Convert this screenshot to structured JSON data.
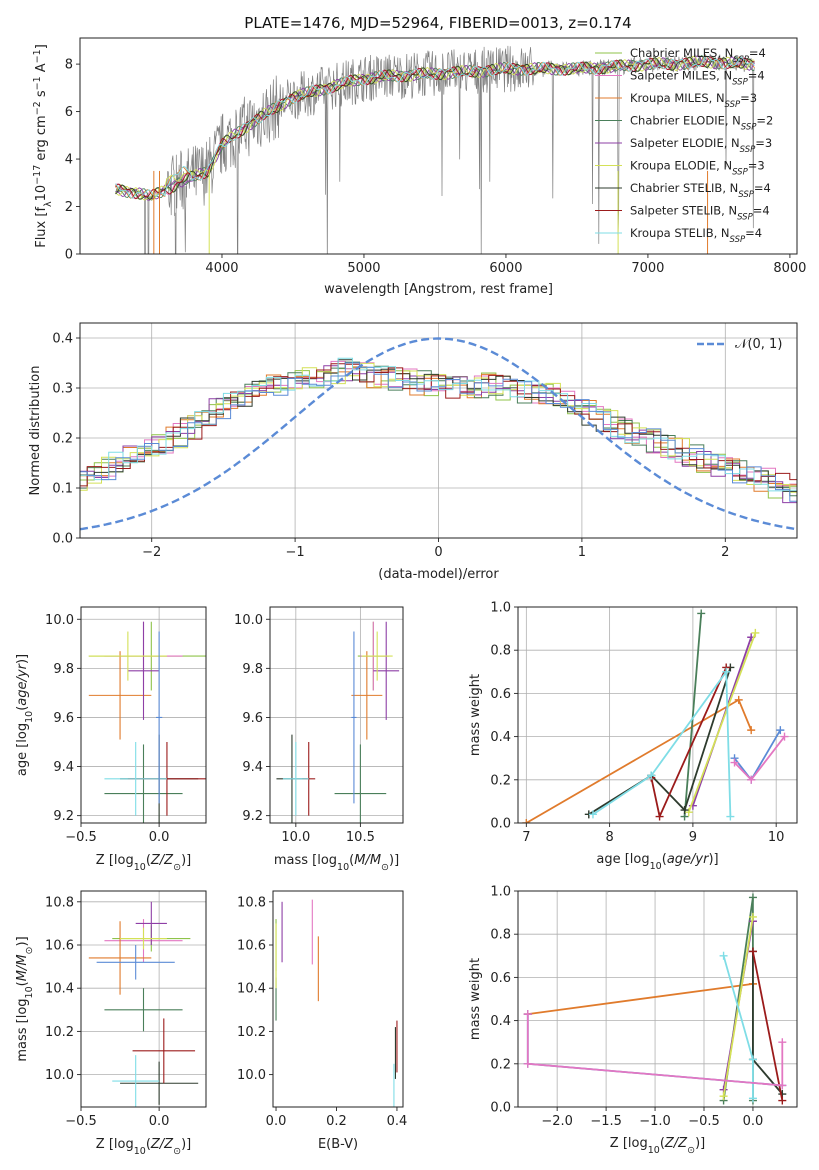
{
  "figure": {
    "title": "PLATE=1476, MJD=52964, FIBERID=0013, z=0.174"
  },
  "chart_data": [
    {
      "id": "spectrum",
      "type": "line",
      "xlabel": "wavelength [Angstrom, rest frame]",
      "ylabel": "Flux [f_λ 10^-17 erg cm^-2 s^-1 A^-1]",
      "xlim": [
        3000,
        8050
      ],
      "ylim": [
        0,
        9.1
      ],
      "xticks": [
        4000,
        5000,
        6000,
        7000,
        8000
      ],
      "yticks": [
        0,
        2,
        4,
        6,
        8
      ],
      "grid": false,
      "legend_position": "top-right",
      "legend": [
        {
          "name": "Chabrier MILES, N_SSP=4",
          "main": "Chabrier MILES, N",
          "sub": "SSP",
          "tail": "=4",
          "color": "#8fc34a"
        },
        {
          "name": "Salpeter MILES, N_SSP=4",
          "main": "Salpeter MILES, N",
          "sub": "SSP",
          "tail": "=4",
          "color": "#e377c2"
        },
        {
          "name": "Kroupa MILES, N_SSP=3",
          "main": "Kroupa MILES, N",
          "sub": "SSP",
          "tail": "=3",
          "color": "#e07b2c"
        },
        {
          "name": "Chabrier ELODIE, N_SSP=2",
          "main": "Chabrier ELODIE, N",
          "sub": "SSP",
          "tail": "=2",
          "color": "#4a7f5a"
        },
        {
          "name": "Salpeter ELODIE, N_SSP=3",
          "main": "Salpeter ELODIE, N",
          "sub": "SSP",
          "tail": "=3",
          "color": "#8e3fa6"
        },
        {
          "name": "Kroupa ELODIE, N_SSP=3",
          "main": "Kroupa ELODIE, N",
          "sub": "SSP",
          "tail": "=3",
          "color": "#d4e157"
        },
        {
          "name": "Chabrier STELIB, N_SSP=4",
          "main": "Chabrier STELIB, N",
          "sub": "SSP",
          "tail": "=4",
          "color": "#2e3b2e"
        },
        {
          "name": "Salpeter STELIB, N_SSP=4",
          "main": "Salpeter STELIB, N",
          "sub": "SSP",
          "tail": "=4",
          "color": "#9b1b1b"
        },
        {
          "name": "Kroupa STELIB, N_SSP=4",
          "main": "Kroupa STELIB, N",
          "sub": "SSP",
          "tail": "=4",
          "color": "#7fdde6"
        }
      ],
      "data_color": "#808080",
      "model_shape": {
        "x": [
          3250,
          3400,
          3500,
          3700,
          3900,
          4000,
          4200,
          4500,
          4800,
          5000,
          5200,
          5500,
          5800,
          6000,
          6200,
          6500,
          6800,
          7000,
          7200,
          7400,
          7700
        ],
        "y": [
          2.7,
          2.6,
          2.4,
          3.0,
          3.5,
          4.6,
          5.5,
          6.6,
          7.1,
          7.4,
          7.5,
          7.6,
          7.7,
          7.8,
          7.8,
          7.8,
          7.9,
          8.0,
          8.0,
          8.1,
          8.0
        ]
      }
    },
    {
      "id": "residuals",
      "type": "bar",
      "xlabel": "(data-model)/error",
      "ylabel": "Normed distribution",
      "xlim": [
        -2.5,
        2.5
      ],
      "ylim": [
        0,
        0.43
      ],
      "xticks": [
        -2,
        -1,
        0,
        1,
        2
      ],
      "yticks": [
        0.0,
        0.1,
        0.2,
        0.3,
        0.4
      ],
      "grid": true,
      "legend": [
        "𝒩(0, 1)"
      ],
      "normal_color": "#5b8bd6",
      "bin_width": 0.1,
      "hist_base": [
        0.05,
        0.06,
        0.065,
        0.07,
        0.08,
        0.085,
        0.095,
        0.1,
        0.11,
        0.12,
        0.13,
        0.14,
        0.15,
        0.16,
        0.175,
        0.19,
        0.205,
        0.22,
        0.24,
        0.255,
        0.27,
        0.285,
        0.295,
        0.305,
        0.31,
        0.32,
        0.325,
        0.33,
        0.335,
        0.33,
        0.325,
        0.32,
        0.315,
        0.31,
        0.305,
        0.3,
        0.3,
        0.305,
        0.31,
        0.3,
        0.295,
        0.29,
        0.285,
        0.275,
        0.265,
        0.25,
        0.235,
        0.22,
        0.205,
        0.195,
        0.185,
        0.175,
        0.165,
        0.155,
        0.145,
        0.135,
        0.125,
        0.115,
        0.105,
        0.095,
        0.09,
        0.085,
        0.08,
        0.075,
        0.07,
        0.065,
        0.06,
        0.055,
        0.05,
        0.045,
        0.04
      ]
    },
    {
      "id": "age_vs_Z",
      "type": "scatter",
      "xlabel": "Z [log10(Z/Z☉)]",
      "ylabel": "age [log10(age/yr)]",
      "xlim": [
        -0.5,
        0.3
      ],
      "ylim": [
        9.17,
        10.05
      ],
      "xticks": [
        -0.5,
        0.0
      ],
      "yticks": [
        9.2,
        9.4,
        9.6,
        9.8,
        10.0
      ],
      "grid": true,
      "points": [
        {
          "x": -0.05,
          "y": 9.85,
          "ex": 0.4,
          "ey": 0.14,
          "color": "#8fc34a"
        },
        {
          "x": -0.1,
          "y": 9.85,
          "ex": 0.25,
          "ey": 0.14,
          "color": "#e377c2"
        },
        {
          "x": -0.25,
          "y": 9.69,
          "ex": 0.2,
          "ey": 0.18,
          "color": "#e07b2c"
        },
        {
          "x": -0.1,
          "y": 9.29,
          "ex": 0.25,
          "ey": 0.2,
          "color": "#4a7f5a"
        },
        {
          "x": -0.1,
          "y": 9.79,
          "ex": 0.1,
          "ey": 0.2,
          "color": "#8e3fa6"
        },
        {
          "x": -0.2,
          "y": 9.85,
          "ex": 0.25,
          "ey": 0.1,
          "color": "#d4e157"
        },
        {
          "x": 0.0,
          "y": 9.35,
          "ex": 0.25,
          "ey": 0.18,
          "color": "#2e3b2e"
        },
        {
          "x": 0.05,
          "y": 9.35,
          "ex": 0.25,
          "ey": 0.15,
          "color": "#9b1b1b"
        },
        {
          "x": -0.15,
          "y": 9.35,
          "ex": 0.2,
          "ey": 0.15,
          "color": "#7fdde6"
        },
        {
          "x": 0.0,
          "y": 9.6,
          "ex": 0.02,
          "ey": 0.35,
          "color": "#5b8bd6"
        }
      ]
    },
    {
      "id": "age_vs_mass",
      "type": "scatter",
      "xlabel": "mass [log10(M/M☉)]",
      "ylabel": "",
      "xlim": [
        9.8,
        10.83
      ],
      "ylim": [
        9.17,
        10.05
      ],
      "xticks": [
        10.0,
        10.5
      ],
      "yticks": [
        9.2,
        9.4,
        9.6,
        9.8,
        10.0
      ],
      "grid": true,
      "points": [
        {
          "x": 10.6,
          "y": 9.85,
          "ex": 0.12,
          "ey": 0.14,
          "color": "#8fc34a"
        },
        {
          "x": 10.6,
          "y": 9.85,
          "ex": 0.1,
          "ey": 0.14,
          "color": "#e377c2"
        },
        {
          "x": 10.55,
          "y": 9.69,
          "ex": 0.12,
          "ey": 0.18,
          "color": "#e07b2c"
        },
        {
          "x": 10.5,
          "y": 9.29,
          "ex": 0.2,
          "ey": 0.2,
          "color": "#4a7f5a"
        },
        {
          "x": 10.7,
          "y": 9.79,
          "ex": 0.1,
          "ey": 0.2,
          "color": "#8e3fa6"
        },
        {
          "x": 10.63,
          "y": 9.85,
          "ex": 0.12,
          "ey": 0.1,
          "color": "#d4e157"
        },
        {
          "x": 9.97,
          "y": 9.35,
          "ex": 0.12,
          "ey": 0.18,
          "color": "#2e3b2e"
        },
        {
          "x": 10.1,
          "y": 9.35,
          "ex": 0.05,
          "ey": 0.15,
          "color": "#9b1b1b"
        },
        {
          "x": 10.0,
          "y": 9.35,
          "ex": 0.1,
          "ey": 0.15,
          "color": "#7fdde6"
        },
        {
          "x": 10.45,
          "y": 9.6,
          "ex": 0.02,
          "ey": 0.35,
          "color": "#5b8bd6"
        }
      ]
    },
    {
      "id": "weight_vs_age",
      "type": "line",
      "xlabel": "age [log10(age/yr)]",
      "ylabel": "mass weight",
      "xlim": [
        6.9,
        10.25
      ],
      "ylim": [
        0,
        1.0
      ],
      "xticks": [
        7,
        8,
        9,
        10
      ],
      "yticks": [
        0.0,
        0.2,
        0.4,
        0.6,
        0.8,
        1.0
      ],
      "grid": true,
      "series": [
        {
          "color": "#e07b2c",
          "x": [
            7.0,
            9.55,
            9.7
          ],
          "y": [
            0.0,
            0.57,
            0.43
          ]
        },
        {
          "color": "#4a7f5a",
          "x": [
            8.9,
            9.1
          ],
          "y": [
            0.03,
            0.97
          ]
        },
        {
          "color": "#8e3fa6",
          "x": [
            9.0,
            9.7
          ],
          "y": [
            0.08,
            0.86
          ]
        },
        {
          "color": "#d4e157",
          "x": [
            8.95,
            9.75
          ],
          "y": [
            0.05,
            0.88
          ]
        },
        {
          "color": "#2e3b2e",
          "x": [
            7.75,
            8.5,
            8.9,
            9.45
          ],
          "y": [
            0.04,
            0.22,
            0.06,
            0.72
          ]
        },
        {
          "color": "#9b1b1b",
          "x": [
            8.5,
            8.6,
            9.4
          ],
          "y": [
            0.21,
            0.03,
            0.72
          ]
        },
        {
          "color": "#7fdde6",
          "x": [
            7.8,
            8.5,
            9.4,
            9.45
          ],
          "y": [
            0.04,
            0.22,
            0.7,
            0.03
          ]
        },
        {
          "color": "#5b8bd6",
          "x": [
            9.5,
            9.7,
            10.05
          ],
          "y": [
            0.3,
            0.2,
            0.43
          ]
        },
        {
          "color": "#e377c2",
          "x": [
            9.5,
            9.7,
            10.1
          ],
          "y": [
            0.28,
            0.2,
            0.4
          ]
        }
      ]
    },
    {
      "id": "mass_vs_Z",
      "type": "scatter",
      "xlabel": "Z [log10(Z/Z☉)]",
      "ylabel": "mass [log10(M/M☉)]",
      "xlim": [
        -0.5,
        0.3
      ],
      "ylim": [
        9.85,
        10.85
      ],
      "xticks": [
        -0.5,
        0.0
      ],
      "yticks": [
        10.0,
        10.2,
        10.4,
        10.6,
        10.8
      ],
      "grid": true,
      "points": [
        {
          "x": -0.05,
          "y": 10.63,
          "ex": 0.25,
          "ey": 0.06,
          "color": "#8fc34a"
        },
        {
          "x": -0.1,
          "y": 10.62,
          "ex": 0.25,
          "ey": 0.1,
          "color": "#e377c2"
        },
        {
          "x": -0.25,
          "y": 10.54,
          "ex": 0.2,
          "ey": 0.17,
          "color": "#e07b2c"
        },
        {
          "x": -0.1,
          "y": 10.3,
          "ex": 0.25,
          "ey": 0.1,
          "color": "#4a7f5a"
        },
        {
          "x": -0.05,
          "y": 10.7,
          "ex": 0.1,
          "ey": 0.1,
          "color": "#8e3fa6"
        },
        {
          "x": -0.1,
          "y": 10.63,
          "ex": 0.15,
          "ey": 0.05,
          "color": "#d4e157"
        },
        {
          "x": 0.0,
          "y": 9.96,
          "ex": 0.25,
          "ey": 0.1,
          "color": "#2e3b2e"
        },
        {
          "x": 0.03,
          "y": 10.11,
          "ex": 0.2,
          "ey": 0.15,
          "color": "#9b1b1b"
        },
        {
          "x": -0.15,
          "y": 9.97,
          "ex": 0.15,
          "ey": 0.12,
          "color": "#7fdde6"
        },
        {
          "x": -0.15,
          "y": 10.52,
          "ex": 0.25,
          "ey": 0.08,
          "color": "#5b8bd6"
        }
      ]
    },
    {
      "id": "mass_vs_EBV",
      "type": "scatter",
      "xlabel": "E(B-V)",
      "ylabel": "",
      "xlim": [
        -0.01,
        0.42
      ],
      "ylim": [
        9.85,
        10.85
      ],
      "xticks": [
        0.0,
        0.2,
        0.4
      ],
      "yticks": [
        10.0,
        10.2,
        10.4,
        10.6,
        10.8
      ],
      "grid": false,
      "points": [
        {
          "x": 0.0,
          "y": 10.6,
          "ex": 0.0,
          "ey": 0.12,
          "color": "#8fc34a"
        },
        {
          "x": 0.12,
          "y": 10.66,
          "ex": 0.0,
          "ey": 0.15,
          "color": "#e377c2"
        },
        {
          "x": 0.14,
          "y": 10.49,
          "ex": 0.0,
          "ey": 0.15,
          "color": "#e07b2c"
        },
        {
          "x": 0.0,
          "y": 10.35,
          "ex": 0.0,
          "ey": 0.1,
          "color": "#4a7f5a"
        },
        {
          "x": 0.02,
          "y": 10.66,
          "ex": 0.0,
          "ey": 0.14,
          "color": "#8e3fa6"
        },
        {
          "x": 0.0,
          "y": 10.55,
          "ex": 0.0,
          "ey": 0.15,
          "color": "#d4e157"
        },
        {
          "x": 0.395,
          "y": 10.1,
          "ex": 0.0,
          "ey": 0.12,
          "color": "#2e3b2e"
        },
        {
          "x": 0.4,
          "y": 10.13,
          "ex": 0.0,
          "ey": 0.12,
          "color": "#9b1b1b"
        },
        {
          "x": 0.39,
          "y": 9.95,
          "ex": 0.0,
          "ey": 0.1,
          "color": "#7fdde6"
        }
      ]
    },
    {
      "id": "weight_vs_Z",
      "type": "line",
      "xlabel": "Z [log10(Z/Z☉)]",
      "ylabel": "mass weight",
      "xlim": [
        -2.4,
        0.45
      ],
      "ylim": [
        0,
        1.0
      ],
      "xticks": [
        -2.0,
        -1.5,
        -1.0,
        -0.5,
        0.0
      ],
      "yticks": [
        0.0,
        0.2,
        0.4,
        0.6,
        0.8,
        1.0
      ],
      "grid": true,
      "series": [
        {
          "color": "#e07b2c",
          "x": [
            -2.3,
            0.0,
            0.0
          ],
          "y": [
            0.43,
            0.57,
            0.57
          ]
        },
        {
          "color": "#4a7f5a",
          "x": [
            -0.3,
            0.0,
            0.0
          ],
          "y": [
            0.03,
            0.97,
            0.03
          ]
        },
        {
          "color": "#8e3fa6",
          "x": [
            -0.3,
            0.0
          ],
          "y": [
            0.08,
            0.86
          ]
        },
        {
          "color": "#d4e157",
          "x": [
            -0.3,
            0.0
          ],
          "y": [
            0.05,
            0.88
          ]
        },
        {
          "color": "#2e3b2e",
          "x": [
            0.0,
            0.0,
            0.3
          ],
          "y": [
            0.72,
            0.22,
            0.06
          ]
        },
        {
          "color": "#9b1b1b",
          "x": [
            0.0,
            0.3
          ],
          "y": [
            0.72,
            0.03
          ]
        },
        {
          "color": "#7fdde6",
          "x": [
            -0.3,
            0.0,
            0.0
          ],
          "y": [
            0.7,
            0.22,
            0.04
          ]
        },
        {
          "color": "#5b8bd6",
          "x": [
            -2.3,
            -2.3,
            0.3
          ],
          "y": [
            0.43,
            0.2,
            0.1
          ]
        },
        {
          "color": "#e377c2",
          "x": [
            -2.3,
            -2.3,
            0.3,
            0.3
          ],
          "y": [
            0.43,
            0.2,
            0.1,
            0.3
          ]
        }
      ]
    }
  ]
}
